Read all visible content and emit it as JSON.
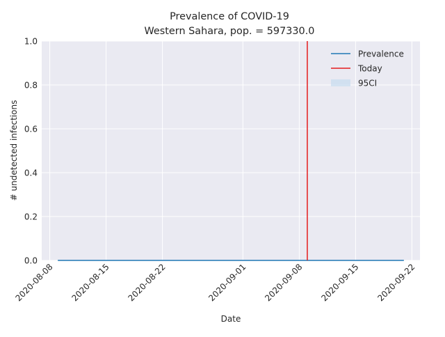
{
  "chart_data": {
    "type": "line",
    "title": "Prevalence of COVID-19",
    "subtitle": "Western Sahara, pop. = 597330.0",
    "xlabel": "Date",
    "ylabel": "# undetected infections",
    "x_type": "date",
    "xlim": [
      "2020-08-07",
      "2020-09-23"
    ],
    "ylim": [
      0,
      1.0
    ],
    "x_ticks": [
      "2020-08-08",
      "2020-08-15",
      "2020-08-22",
      "2020-09-01",
      "2020-09-08",
      "2020-09-15",
      "2020-09-22"
    ],
    "y_ticks": [
      0.0,
      0.2,
      0.4,
      0.6,
      0.8,
      1.0
    ],
    "y_tick_labels": [
      "0.0",
      "0.2",
      "0.4",
      "0.6",
      "0.8",
      "1.0"
    ],
    "grid": true,
    "legend_position": "top-right",
    "series": [
      {
        "name": "Prevalence",
        "kind": "line",
        "color": "#1f77b4",
        "x_start": "2020-08-09",
        "x_end": "2020-09-21",
        "values": [
          0,
          0
        ]
      },
      {
        "name": "Today",
        "kind": "vline",
        "color": "#e41a1c",
        "x": "2020-09-09"
      },
      {
        "name": "95CI",
        "kind": "band",
        "color": "#c6dbef",
        "lower": [
          0,
          0
        ],
        "upper": [
          0,
          0
        ]
      }
    ]
  }
}
